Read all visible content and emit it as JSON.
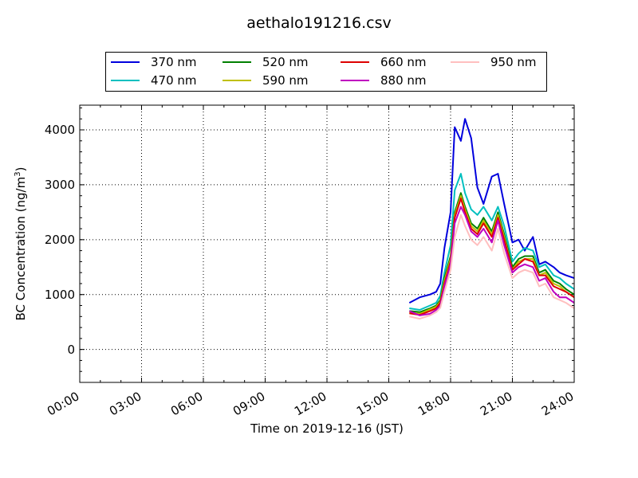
{
  "chart_data": {
    "type": "line",
    "title": "aethalo191216.csv",
    "xlabel": "Time on 2019-12-16 (JST)",
    "ylabel_main": "BC Concentration (ng/m",
    "ylabel_sup": "3",
    "ylabel_end": ")",
    "xlim_hours": [
      0,
      24
    ],
    "ylim": [
      -600,
      4450
    ],
    "grid": true,
    "legend_position": "top-center",
    "x_ticks": [
      "00:00",
      "03:00",
      "06:00",
      "09:00",
      "12:00",
      "15:00",
      "18:00",
      "21:00",
      "24:00"
    ],
    "x_tick_hours": [
      0,
      3,
      6,
      9,
      12,
      15,
      18,
      21,
      24
    ],
    "y_ticks": [
      0,
      1000,
      2000,
      3000,
      4000
    ],
    "y_tick_labels": [
      "0",
      "1000",
      "2000",
      "3000",
      "4000"
    ],
    "x_hours": [
      16.0,
      16.5,
      17.0,
      17.3,
      17.5,
      17.7,
      18.0,
      18.2,
      18.5,
      18.7,
      19.0,
      19.3,
      19.6,
      20.0,
      20.3,
      20.6,
      21.0,
      21.3,
      21.6,
      22.0,
      22.3,
      22.6,
      23.0,
      23.3,
      23.6,
      24.0
    ],
    "series": [
      {
        "name": "370 nm",
        "color": "#0000dd",
        "values": [
          850,
          950,
          1000,
          1050,
          1200,
          1850,
          2500,
          4050,
          3800,
          4200,
          3850,
          2950,
          2650,
          3150,
          3200,
          2650,
          1950,
          2000,
          1800,
          2050,
          1550,
          1600,
          1500,
          1400,
          1350,
          1300
        ]
      },
      {
        "name": "470 nm",
        "color": "#00bfbf",
        "values": [
          750,
          720,
          800,
          850,
          980,
          1400,
          1900,
          2900,
          3200,
          2850,
          2550,
          2450,
          2600,
          2350,
          2600,
          2250,
          1600,
          1750,
          1850,
          1800,
          1500,
          1550,
          1350,
          1300,
          1200,
          1100
        ]
      },
      {
        "name": "520 nm",
        "color": "#008000",
        "values": [
          700,
          680,
          750,
          800,
          900,
          1300,
          1700,
          2500,
          2850,
          2600,
          2300,
          2200,
          2400,
          2150,
          2500,
          2100,
          1500,
          1650,
          1700,
          1700,
          1400,
          1450,
          1250,
          1200,
          1100,
          1000
        ]
      },
      {
        "name": "590 nm",
        "color": "#bfbf00",
        "values": [
          680,
          650,
          730,
          780,
          870,
          1250,
          1650,
          2450,
          2800,
          2550,
          2250,
          2150,
          2350,
          2100,
          2450,
          2050,
          1450,
          1600,
          1650,
          1650,
          1350,
          1400,
          1200,
          1150,
          1050,
          950
        ]
      },
      {
        "name": "660 nm",
        "color": "#dd0000",
        "values": [
          660,
          630,
          700,
          750,
          850,
          1200,
          1600,
          2400,
          2750,
          2500,
          2200,
          2100,
          2300,
          2050,
          2400,
          2000,
          1450,
          1550,
          1650,
          1600,
          1350,
          1350,
          1150,
          1100,
          1050,
          950
        ]
      },
      {
        "name": "880 nm",
        "color": "#bf00bf",
        "values": [
          700,
          620,
          650,
          720,
          800,
          1150,
          1550,
          2300,
          2600,
          2450,
          2150,
          2050,
          2200,
          1950,
          2350,
          1900,
          1400,
          1500,
          1550,
          1500,
          1250,
          1300,
          1050,
          950,
          950,
          850
        ]
      },
      {
        "name": "950 nm",
        "color": "#ffbfbf",
        "values": [
          600,
          560,
          620,
          680,
          760,
          1050,
          1450,
          2050,
          2450,
          2250,
          2000,
          1900,
          2050,
          1800,
          2200,
          1750,
          1300,
          1400,
          1450,
          1400,
          1150,
          1200,
          950,
          900,
          850,
          750
        ]
      }
    ]
  }
}
